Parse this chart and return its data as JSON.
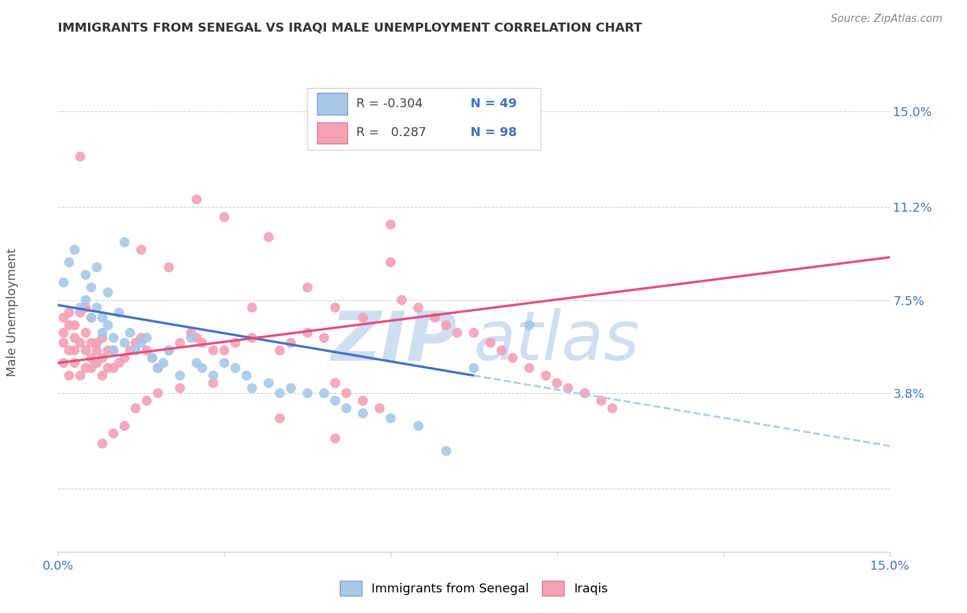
{
  "title": "IMMIGRANTS FROM SENEGAL VS IRAQI MALE UNEMPLOYMENT CORRELATION CHART",
  "source": "Source: ZipAtlas.com",
  "ylabel": "Male Unemployment",
  "y_ticks": [
    0.0,
    0.038,
    0.075,
    0.112,
    0.15
  ],
  "y_tick_labels": [
    "",
    "3.8%",
    "7.5%",
    "11.2%",
    "15.0%"
  ],
  "x_min": 0.0,
  "x_max": 0.15,
  "y_min": -0.025,
  "y_max": 0.165,
  "color_blue": "#a8c8e8",
  "color_pink": "#f4a0b5",
  "color_line_blue": "#4472c4",
  "color_line_pink": "#e05080",
  "color_line_blue_dash": "#aaccee",
  "watermark_color": "#d0dff0",
  "blue_scatter": [
    [
      0.001,
      0.082
    ],
    [
      0.002,
      0.09
    ],
    [
      0.003,
      0.095
    ],
    [
      0.004,
      0.072
    ],
    [
      0.005,
      0.075
    ],
    [
      0.005,
      0.085
    ],
    [
      0.006,
      0.08
    ],
    [
      0.006,
      0.068
    ],
    [
      0.007,
      0.088
    ],
    [
      0.007,
      0.072
    ],
    [
      0.008,
      0.068
    ],
    [
      0.008,
      0.062
    ],
    [
      0.009,
      0.078
    ],
    [
      0.009,
      0.065
    ],
    [
      0.01,
      0.06
    ],
    [
      0.01,
      0.055
    ],
    [
      0.011,
      0.07
    ],
    [
      0.012,
      0.058
    ],
    [
      0.012,
      0.098
    ],
    [
      0.013,
      0.062
    ],
    [
      0.014,
      0.055
    ],
    [
      0.015,
      0.058
    ],
    [
      0.016,
      0.06
    ],
    [
      0.017,
      0.052
    ],
    [
      0.018,
      0.048
    ],
    [
      0.019,
      0.05
    ],
    [
      0.02,
      0.055
    ],
    [
      0.022,
      0.045
    ],
    [
      0.024,
      0.06
    ],
    [
      0.025,
      0.05
    ],
    [
      0.026,
      0.048
    ],
    [
      0.028,
      0.045
    ],
    [
      0.03,
      0.05
    ],
    [
      0.032,
      0.048
    ],
    [
      0.034,
      0.045
    ],
    [
      0.035,
      0.04
    ],
    [
      0.038,
      0.042
    ],
    [
      0.04,
      0.038
    ],
    [
      0.042,
      0.04
    ],
    [
      0.045,
      0.038
    ],
    [
      0.048,
      0.038
    ],
    [
      0.05,
      0.035
    ],
    [
      0.052,
      0.032
    ],
    [
      0.055,
      0.03
    ],
    [
      0.06,
      0.028
    ],
    [
      0.065,
      0.025
    ],
    [
      0.07,
      0.015
    ],
    [
      0.075,
      0.048
    ],
    [
      0.085,
      0.065
    ]
  ],
  "pink_scatter": [
    [
      0.001,
      0.05
    ],
    [
      0.001,
      0.058
    ],
    [
      0.001,
      0.062
    ],
    [
      0.001,
      0.068
    ],
    [
      0.002,
      0.045
    ],
    [
      0.002,
      0.055
    ],
    [
      0.002,
      0.065
    ],
    [
      0.002,
      0.07
    ],
    [
      0.003,
      0.05
    ],
    [
      0.003,
      0.055
    ],
    [
      0.003,
      0.06
    ],
    [
      0.003,
      0.065
    ],
    [
      0.004,
      0.045
    ],
    [
      0.004,
      0.058
    ],
    [
      0.004,
      0.07
    ],
    [
      0.004,
      0.132
    ],
    [
      0.005,
      0.048
    ],
    [
      0.005,
      0.055
    ],
    [
      0.005,
      0.062
    ],
    [
      0.005,
      0.072
    ],
    [
      0.006,
      0.048
    ],
    [
      0.006,
      0.052
    ],
    [
      0.006,
      0.058
    ],
    [
      0.006,
      0.068
    ],
    [
      0.007,
      0.05
    ],
    [
      0.007,
      0.055
    ],
    [
      0.007,
      0.058
    ],
    [
      0.008,
      0.045
    ],
    [
      0.008,
      0.052
    ],
    [
      0.008,
      0.06
    ],
    [
      0.009,
      0.048
    ],
    [
      0.009,
      0.055
    ],
    [
      0.01,
      0.048
    ],
    [
      0.01,
      0.055
    ],
    [
      0.011,
      0.05
    ],
    [
      0.012,
      0.052
    ],
    [
      0.013,
      0.055
    ],
    [
      0.014,
      0.058
    ],
    [
      0.015,
      0.06
    ],
    [
      0.016,
      0.055
    ],
    [
      0.017,
      0.052
    ],
    [
      0.018,
      0.048
    ],
    [
      0.02,
      0.055
    ],
    [
      0.022,
      0.058
    ],
    [
      0.024,
      0.062
    ],
    [
      0.025,
      0.06
    ],
    [
      0.026,
      0.058
    ],
    [
      0.028,
      0.055
    ],
    [
      0.03,
      0.055
    ],
    [
      0.032,
      0.058
    ],
    [
      0.035,
      0.06
    ],
    [
      0.038,
      0.1
    ],
    [
      0.04,
      0.055
    ],
    [
      0.042,
      0.058
    ],
    [
      0.045,
      0.062
    ],
    [
      0.048,
      0.06
    ],
    [
      0.05,
      0.042
    ],
    [
      0.052,
      0.038
    ],
    [
      0.055,
      0.035
    ],
    [
      0.058,
      0.032
    ],
    [
      0.06,
      0.105
    ],
    [
      0.062,
      0.075
    ],
    [
      0.065,
      0.072
    ],
    [
      0.068,
      0.068
    ],
    [
      0.07,
      0.065
    ],
    [
      0.072,
      0.062
    ],
    [
      0.075,
      0.062
    ],
    [
      0.078,
      0.058
    ],
    [
      0.08,
      0.055
    ],
    [
      0.082,
      0.052
    ],
    [
      0.085,
      0.048
    ],
    [
      0.088,
      0.045
    ],
    [
      0.09,
      0.042
    ],
    [
      0.092,
      0.04
    ],
    [
      0.095,
      0.038
    ],
    [
      0.098,
      0.035
    ],
    [
      0.1,
      0.032
    ],
    [
      0.06,
      0.09
    ],
    [
      0.025,
      0.115
    ],
    [
      0.03,
      0.108
    ],
    [
      0.015,
      0.095
    ],
    [
      0.02,
      0.088
    ],
    [
      0.035,
      0.072
    ],
    [
      0.045,
      0.08
    ],
    [
      0.05,
      0.072
    ],
    [
      0.055,
      0.068
    ],
    [
      0.028,
      0.042
    ],
    [
      0.022,
      0.04
    ],
    [
      0.018,
      0.038
    ],
    [
      0.016,
      0.035
    ],
    [
      0.014,
      0.032
    ],
    [
      0.012,
      0.025
    ],
    [
      0.01,
      0.022
    ],
    [
      0.008,
      0.018
    ],
    [
      0.04,
      0.028
    ],
    [
      0.05,
      0.02
    ]
  ],
  "blue_line_y_at_0": 0.073,
  "blue_line_y_at_075": 0.045,
  "pink_line_y_at_0": 0.05,
  "pink_line_y_at_15": 0.092
}
